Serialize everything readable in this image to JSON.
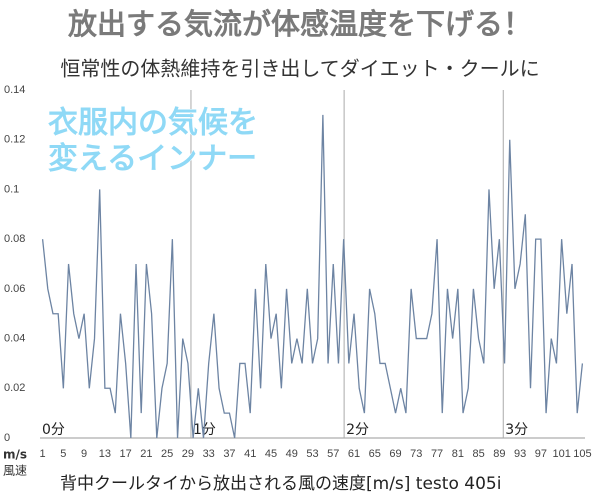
{
  "chart_data": {
    "type": "line",
    "title": "放出する気流が体感温度を下げる！",
    "subtitle": "恒常性の体熱維持を引き出してダイエット・クールに",
    "annotation": [
      "衣服内の気候を",
      "変えるインナー"
    ],
    "y_unit_label": [
      "m/s",
      "風速"
    ],
    "x_label": "背中クールタイから放出される風の速度[m/s] testo 405i",
    "minute_markers": [
      "0分",
      "1分",
      "2分",
      "3分"
    ],
    "categories": [
      1,
      null,
      null,
      null,
      5,
      null,
      null,
      null,
      9,
      null,
      null,
      null,
      13,
      null,
      null,
      null,
      17,
      null,
      null,
      null,
      21,
      null,
      null,
      null,
      25,
      null,
      null,
      null,
      29,
      null,
      null,
      null,
      33,
      null,
      null,
      null,
      37,
      null,
      null,
      null,
      41,
      null,
      null,
      null,
      45,
      null,
      null,
      null,
      49,
      null,
      null,
      null,
      53,
      null,
      null,
      null,
      57,
      null,
      null,
      null,
      61,
      null,
      null,
      null,
      65,
      null,
      null,
      null,
      69,
      null,
      null,
      null,
      73,
      null,
      null,
      null,
      77,
      null,
      null,
      null,
      81,
      null,
      null,
      null,
      85,
      null,
      null,
      null,
      89,
      null,
      null,
      null,
      93,
      null,
      null,
      null,
      97,
      null,
      null,
      null,
      101,
      null,
      null,
      null,
      105
    ],
    "series": [
      {
        "name": "風速",
        "color": "#6d84a3",
        "values": [
          0.08,
          0.06,
          0.05,
          0.05,
          0.02,
          0.07,
          0.05,
          0.04,
          0.05,
          0.02,
          0.04,
          0.1,
          0.02,
          0.02,
          0.01,
          0.05,
          0.03,
          0.0,
          0.07,
          0.01,
          0.07,
          0.05,
          0.0,
          0.02,
          0.03,
          0.08,
          0.0,
          0.04,
          0.03,
          0.0,
          0.02,
          0.0,
          0.03,
          0.05,
          0.02,
          0.01,
          0.01,
          0.0,
          0.03,
          0.03,
          0.01,
          0.06,
          0.02,
          0.07,
          0.04,
          0.05,
          0.02,
          0.06,
          0.03,
          0.04,
          0.03,
          0.06,
          0.03,
          0.04,
          0.13,
          0.03,
          0.07,
          0.03,
          0.08,
          0.03,
          0.05,
          0.02,
          0.01,
          0.06,
          0.05,
          0.03,
          0.03,
          0.02,
          0.01,
          0.02,
          0.01,
          0.06,
          0.04,
          0.04,
          0.04,
          0.05,
          0.08,
          0.01,
          0.06,
          0.04,
          0.06,
          0.01,
          0.02,
          0.06,
          0.04,
          0.03,
          0.1,
          0.06,
          0.08,
          0.03,
          0.12,
          0.06,
          0.07,
          0.09,
          0.02,
          0.08,
          0.08,
          0.01,
          0.04,
          0.03,
          0.08,
          0.05,
          0.07,
          0.01,
          0.03
        ]
      }
    ],
    "ylim": [
      0,
      0.14
    ],
    "yticks": [
      0,
      0.02,
      0.04,
      0.06,
      0.08,
      0.1,
      0.12,
      0.14
    ],
    "grid": false
  }
}
